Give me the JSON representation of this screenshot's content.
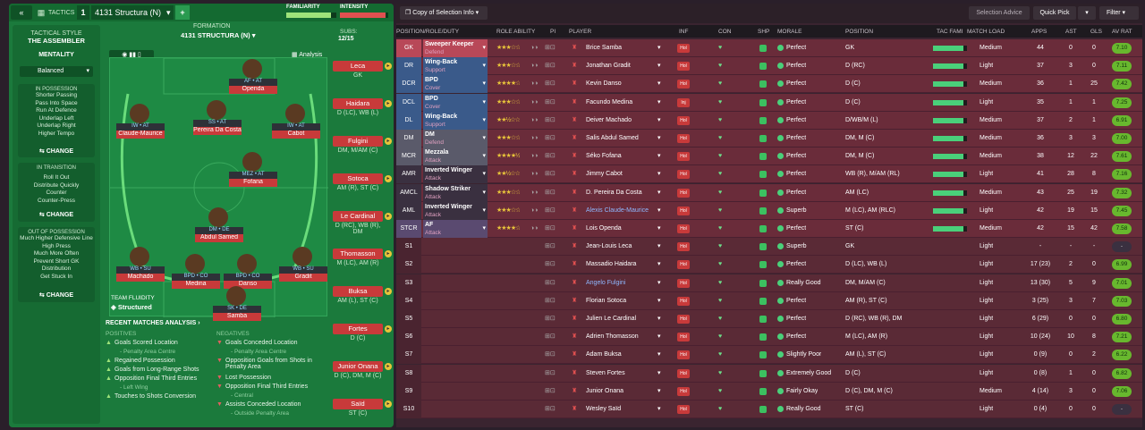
{
  "tactics": {
    "label": "TACTICS",
    "slot": "1",
    "name": "4131 Structura (N)",
    "add": "+",
    "familiarity": "FAMILIARITY",
    "intensity": "INTENSITY",
    "formation_label": "FORMATION",
    "formation_name": "4131 STRUCTURA (N)",
    "subs_label": "SUBS:",
    "subs_count": "12/15",
    "analysis": "Analysis"
  },
  "sidebar": {
    "style_title": "TACTICAL STYLE",
    "style_name": "THE ASSEMBLER",
    "mentality_label": "MENTALITY",
    "mentality": "Balanced",
    "in_possession": "IN POSSESSION",
    "in_possession_items": [
      "Shorter Passing",
      "Pass Into Space",
      "Run At Defence",
      "Underlap Left",
      "Underlap Right",
      "Higher Tempo"
    ],
    "in_transition": "IN TRANSITION",
    "in_transition_items": [
      "Roll It Out",
      "Distribute Quickly",
      "Counter",
      "Counter-Press"
    ],
    "out_possession": "OUT OF POSSESSION",
    "out_possession_items": [
      "Much Higher Defensive Line",
      "High Press",
      "Much More Often",
      "Prevent Short GK",
      "Distribution",
      "Get Stuck In"
    ],
    "change": "CHANGE"
  },
  "pitch": {
    "team_fluidity_label": "TEAM FLUIDITY",
    "team_fluidity": "Structured",
    "players": [
      {
        "role": "AF • AT",
        "name": "Openda"
      },
      {
        "role": "IW • AT",
        "name": "Claude-Maurice"
      },
      {
        "role": "SS • AT",
        "name": "Pereira Da Costa"
      },
      {
        "role": "IW • AT",
        "name": "Cabot"
      },
      {
        "role": "MEZ • AT",
        "name": "Fofana"
      },
      {
        "role": "DM • DE",
        "name": "Abdul Samed"
      },
      {
        "role": "WB • SU",
        "name": "Machado"
      },
      {
        "role": "BPD • CO",
        "name": "Medina"
      },
      {
        "role": "BPD • CO",
        "name": "Danso"
      },
      {
        "role": "WB • SU",
        "name": "Gradit"
      },
      {
        "role": "SK • DE",
        "name": "Samba"
      }
    ]
  },
  "subs": [
    {
      "name": "Leca",
      "pos": "GK"
    },
    {
      "name": "Haidara",
      "pos": "D (LC), WB (L)"
    },
    {
      "name": "Fulgini",
      "pos": "DM, M/AM (C)"
    },
    {
      "name": "Sotoca",
      "pos": "AM (R), ST (C)"
    },
    {
      "name": "Le Cardinal",
      "pos": "D (RC), WB (R), DM"
    },
    {
      "name": "Thomasson",
      "pos": "M (LC), AM (R)"
    },
    {
      "name": "Buksa",
      "pos": "AM (L), ST (C)"
    },
    {
      "name": "Fortes",
      "pos": "D (C)"
    },
    {
      "name": "Junior Onana",
      "pos": "D (C), DM, M (C)"
    },
    {
      "name": "Saïd",
      "pos": "ST (C)"
    }
  ],
  "recent": {
    "title": "RECENT MATCHES ANALYSIS ›",
    "positives_label": "POSITIVES",
    "negatives_label": "NEGATIVES",
    "positives": [
      [
        "Goals Scored Location",
        "- Penalty Area Centre"
      ],
      [
        "Regained Possession",
        ""
      ],
      [
        "Goals from Long-Range Shots",
        ""
      ],
      [
        "Opposition Final Third Entries",
        "- Left Wing"
      ],
      [
        "Touches to Shots Conversion",
        ""
      ]
    ],
    "negatives": [
      [
        "Goals Conceded Location",
        "- Penalty Area Centre"
      ],
      [
        "Opposition Goals from Shots in Penalty Area",
        ""
      ],
      [
        "Lost Possession",
        ""
      ],
      [
        "Opposition Final Third Entries",
        "- Central"
      ],
      [
        "Assists Conceded Location",
        "- Outside Penalty Area"
      ]
    ]
  },
  "right_top": {
    "copy": "Copy of Selection Info",
    "selection_advice": "Selection Advice",
    "quick_pick": "Quick Pick",
    "filter": "Filter"
  },
  "headers": {
    "pos": "POSITION/ROLE/DUTY",
    "ra": "ROLE ABILITY",
    "pi": "PI",
    "player": "PLAYER",
    "inf": "INF",
    "con": "CON",
    "shp": "SHP",
    "morale": "MORALE",
    "position": "POSITION",
    "tac": "TAC FAMI",
    "load": "MATCH LOAD",
    "apps": "APPS",
    "ast": "AST",
    "gls": "GLS",
    "av": "AV RAT"
  },
  "rows": [
    {
      "pos": "GK",
      "role": "Sweeper Keeper",
      "duty": "Defend",
      "stars": "★★★☆☆",
      "player": "Brice Samba",
      "inf": "Hol",
      "morale": "Perfect",
      "position": "GK",
      "load": "Medium",
      "apps": "44",
      "ast": "0",
      "gls": "0",
      "rat": "7.10",
      "tac": 0.9
    },
    {
      "pos": "DR",
      "role": "Wing-Back",
      "duty": "Support",
      "stars": "★★★☆☆",
      "player": "Jonathan Gradit",
      "inf": "Hol",
      "morale": "Perfect",
      "position": "D (RC)",
      "load": "Light",
      "apps": "37",
      "ast": "3",
      "gls": "0",
      "rat": "7.11",
      "tac": 0.9
    },
    {
      "pos": "DCR",
      "role": "BPD",
      "duty": "Cover",
      "stars": "★★★★☆",
      "player": "Kevin Danso",
      "inf": "Hol",
      "morale": "Perfect",
      "position": "D (C)",
      "load": "Medium",
      "apps": "36",
      "ast": "1",
      "gls": "25",
      "rat": "7.42",
      "tac": 0.9
    },
    {
      "pos": "DCL",
      "role": "BPD",
      "duty": "Cover",
      "stars": "★★★☆☆",
      "player": "Facundo Medina",
      "inf": "Inj",
      "morale": "Perfect",
      "position": "D (C)",
      "load": "Light",
      "apps": "35",
      "ast": "1",
      "gls": "1",
      "rat": "7.25",
      "tac": 0.9
    },
    {
      "pos": "DL",
      "role": "Wing-Back",
      "duty": "Support",
      "stars": "★★½☆☆",
      "player": "Deiver Machado",
      "inf": "Hol",
      "morale": "Perfect",
      "position": "D/WB/M (L)",
      "load": "Medium",
      "apps": "37",
      "ast": "2",
      "gls": "1",
      "rat": "6.91",
      "tac": 0.9
    },
    {
      "pos": "DM",
      "role": "DM",
      "duty": "Defend",
      "stars": "★★★☆☆",
      "player": "Salis Abdul Samed",
      "inf": "Hol",
      "morale": "Perfect",
      "position": "DM, M (C)",
      "load": "Medium",
      "apps": "36",
      "ast": "3",
      "gls": "3",
      "rat": "7.00",
      "tac": 0.9
    },
    {
      "pos": "MCR",
      "role": "Mezzala",
      "duty": "Attack",
      "stars": "★★★★½",
      "player": "Séko Fofana",
      "inf": "Hol",
      "morale": "Perfect",
      "position": "DM, M (C)",
      "load": "Medium",
      "apps": "38",
      "ast": "12",
      "gls": "22",
      "rat": "7.61",
      "tac": 0.9
    },
    {
      "pos": "AMR",
      "role": "Inverted Winger",
      "duty": "Attack",
      "stars": "★★½☆☆",
      "player": "Jimmy Cabot",
      "inf": "Hol",
      "morale": "Perfect",
      "position": "WB (R), M/AM (RL)",
      "load": "Light",
      "apps": "41",
      "ast": "28",
      "gls": "8",
      "rat": "7.16",
      "tac": 0.9
    },
    {
      "pos": "AMCL",
      "role": "Shadow Striker",
      "duty": "Attack",
      "stars": "★★★☆☆",
      "player": "D. Pereira Da Costa",
      "inf": "Hol",
      "morale": "Perfect",
      "position": "AM (LC)",
      "load": "Medium",
      "apps": "43",
      "ast": "25",
      "gls": "19",
      "rat": "7.32",
      "tac": 0.9
    },
    {
      "pos": "AML",
      "role": "Inverted Winger",
      "duty": "Attack",
      "stars": "★★★☆☆",
      "player": "Alexis Claude-Maurice",
      "inf": "Hol",
      "morale": "Superb",
      "position": "M (LC), AM (RLC)",
      "load": "Light",
      "apps": "42",
      "ast": "19",
      "gls": "15",
      "rat": "7.45",
      "tac": 0.9
    },
    {
      "pos": "STCR",
      "role": "AF",
      "duty": "Attack",
      "stars": "★★★★☆",
      "player": "Lois Openda",
      "inf": "Hol",
      "morale": "Perfect",
      "position": "ST (C)",
      "load": "Medium",
      "apps": "42",
      "ast": "15",
      "gls": "42",
      "rat": "7.58",
      "tac": 0.9
    },
    {
      "pos": "S1",
      "role": "",
      "duty": "",
      "stars": "",
      "player": "Jean-Louis Leca",
      "inf": "Hol",
      "morale": "Superb",
      "position": "GK",
      "load": "Light",
      "apps": "-",
      "ast": "-",
      "gls": "-",
      "rat": "-",
      "tac": 0
    },
    {
      "pos": "S2",
      "role": "",
      "duty": "",
      "stars": "",
      "player": "Massadio Haidara",
      "inf": "Hol",
      "morale": "Perfect",
      "position": "D (LC), WB (L)",
      "load": "Light",
      "apps": "17 (23)",
      "ast": "2",
      "gls": "0",
      "rat": "6.99",
      "tac": 0
    },
    {
      "pos": "S3",
      "role": "",
      "duty": "",
      "stars": "",
      "player": "Angelo Fulgini",
      "inf": "Hol",
      "morale": "Really Good",
      "position": "DM, M/AM (C)",
      "load": "Light",
      "apps": "13 (30)",
      "ast": "5",
      "gls": "9",
      "rat": "7.01",
      "tac": 0
    },
    {
      "pos": "S4",
      "role": "",
      "duty": "",
      "stars": "",
      "player": "Florian Sotoca",
      "inf": "Hol",
      "morale": "Perfect",
      "position": "AM (R), ST (C)",
      "load": "Light",
      "apps": "3 (25)",
      "ast": "3",
      "gls": "7",
      "rat": "7.03",
      "tac": 0
    },
    {
      "pos": "S5",
      "role": "",
      "duty": "",
      "stars": "",
      "player": "Julien Le Cardinal",
      "inf": "Hol",
      "morale": "Perfect",
      "position": "D (RC), WB (R), DM",
      "load": "Light",
      "apps": "6 (29)",
      "ast": "0",
      "gls": "0",
      "rat": "6.80",
      "tac": 0
    },
    {
      "pos": "S6",
      "role": "",
      "duty": "",
      "stars": "",
      "player": "Adrien Thomasson",
      "inf": "Hol",
      "morale": "Perfect",
      "position": "M (LC), AM (R)",
      "load": "Light",
      "apps": "10 (24)",
      "ast": "10",
      "gls": "8",
      "rat": "7.21",
      "tac": 0
    },
    {
      "pos": "S7",
      "role": "",
      "duty": "",
      "stars": "",
      "player": "Adam Buksa",
      "inf": "Hol",
      "morale": "Slightly Poor",
      "position": "AM (L), ST (C)",
      "load": "Light",
      "apps": "0 (9)",
      "ast": "0",
      "gls": "2",
      "rat": "6.22",
      "tac": 0
    },
    {
      "pos": "S8",
      "role": "",
      "duty": "",
      "stars": "",
      "player": "Steven Fortes",
      "inf": "Hol",
      "morale": "Extremely Good",
      "position": "D (C)",
      "load": "Light",
      "apps": "0 (8)",
      "ast": "1",
      "gls": "0",
      "rat": "6.82",
      "tac": 0
    },
    {
      "pos": "S9",
      "role": "",
      "duty": "",
      "stars": "",
      "player": "Junior Onana",
      "inf": "Hol",
      "morale": "Fairly Okay",
      "position": "D (C), DM, M (C)",
      "load": "Medium",
      "apps": "4 (14)",
      "ast": "3",
      "gls": "0",
      "rat": "7.06",
      "tac": 0
    },
    {
      "pos": "S10",
      "role": "",
      "duty": "",
      "stars": "",
      "player": "Wesley Saïd",
      "inf": "Hol",
      "morale": "Really Good",
      "position": "ST (C)",
      "load": "Light",
      "apps": "0 (4)",
      "ast": "0",
      "gls": "0",
      "rat": "-",
      "tac": 0
    }
  ],
  "colors": {
    "pitch": "#1e8a44",
    "panel": "#1b7a3c",
    "row": "#6a2c3a",
    "rating": "#68b82e",
    "gk": "#b84858",
    "def": "#3a5a8a",
    "mid": "#5a5a6a",
    "att": "#5a4a70"
  }
}
